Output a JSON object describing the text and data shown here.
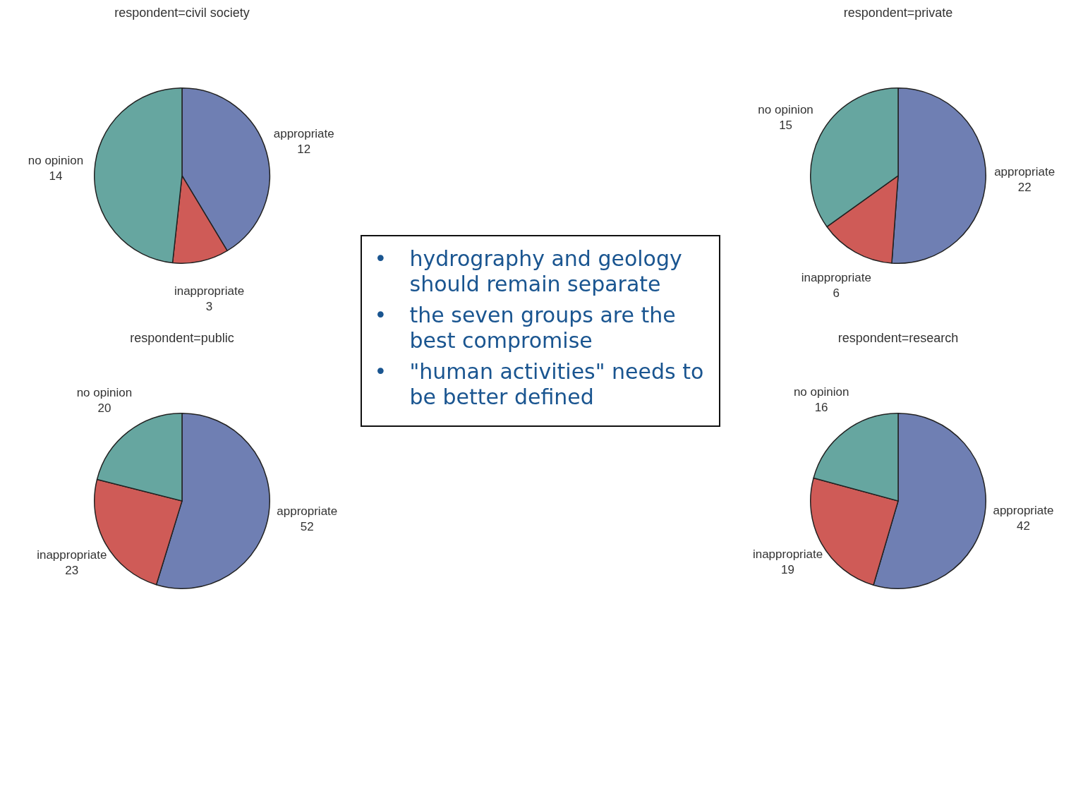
{
  "chart_data": [
    {
      "type": "pie",
      "title": "respondent=civil society",
      "categories": [
        "appropriate",
        "inappropriate",
        "no opinion"
      ],
      "values": [
        12,
        3,
        14
      ],
      "colors": [
        "#6f7fb3",
        "#cf5b57",
        "#66a6a0"
      ],
      "data_labels": true
    },
    {
      "type": "pie",
      "title": "respondent=private",
      "categories": [
        "appropriate",
        "inappropriate",
        "no opinion"
      ],
      "values": [
        22,
        6,
        15
      ],
      "colors": [
        "#6f7fb3",
        "#cf5b57",
        "#66a6a0"
      ],
      "data_labels": true
    },
    {
      "type": "pie",
      "title": "respondent=public",
      "categories": [
        "appropriate",
        "inappropriate",
        "no opinion"
      ],
      "values": [
        52,
        23,
        20
      ],
      "colors": [
        "#6f7fb3",
        "#cf5b57",
        "#66a6a0"
      ],
      "data_labels": true
    },
    {
      "type": "pie",
      "title": "respondent=research",
      "categories": [
        "appropriate",
        "inappropriate",
        "no opinion"
      ],
      "values": [
        42,
        19,
        16
      ],
      "colors": [
        "#6f7fb3",
        "#cf5b57",
        "#66a6a0"
      ],
      "data_labels": true
    },
    {
      "type": "other",
      "annotations": [
        "• hydrography and geology should remain separate",
        "• the seven groups are the best compromise",
        "• \"human activities\" needs to be better defined"
      ]
    }
  ]
}
